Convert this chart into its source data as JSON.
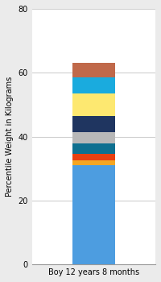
{
  "category": "Boy 12 years 8 months",
  "ylabel": "Percentile Weight in Kilograms",
  "ylim": [
    0,
    80
  ],
  "yticks": [
    0,
    20,
    40,
    60,
    80
  ],
  "segments": [
    {
      "value": 31.0,
      "color": "#4d9de0"
    },
    {
      "value": 1.5,
      "color": "#f5a623"
    },
    {
      "value": 2.0,
      "color": "#e84010"
    },
    {
      "value": 3.5,
      "color": "#0e7090"
    },
    {
      "value": 3.5,
      "color": "#b8b8b8"
    },
    {
      "value": 5.0,
      "color": "#1f3560"
    },
    {
      "value": 7.0,
      "color": "#fde870"
    },
    {
      "value": 5.0,
      "color": "#1aabde"
    },
    {
      "value": 4.5,
      "color": "#c0694a"
    }
  ],
  "background_color": "#ebebeb",
  "plot_bg_color": "#ffffff",
  "grid_color": "#d0d0d0",
  "bar_width": 0.35,
  "tick_fontsize": 7,
  "label_fontsize": 7
}
